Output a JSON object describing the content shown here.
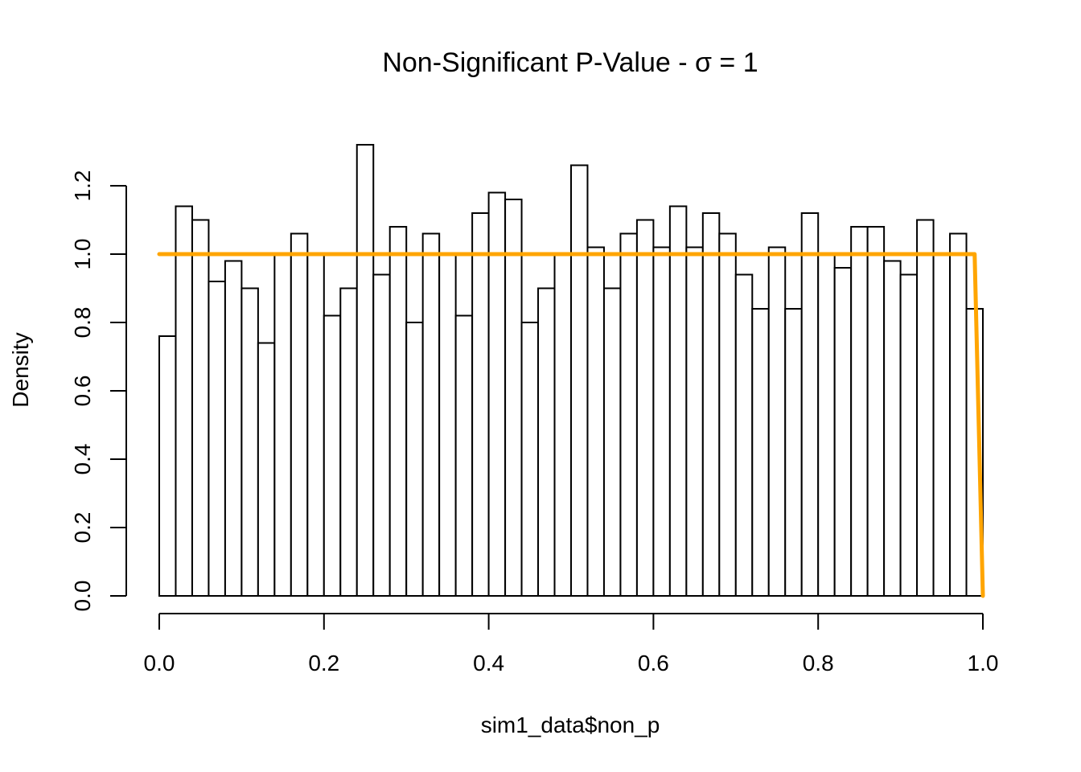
{
  "chart_data": {
    "type": "bar",
    "title": "Non-Significant P-Value - σ = 1",
    "xlabel": "sim1_data$non_p",
    "ylabel": "Density",
    "xlim": [
      0,
      1
    ],
    "ylim": [
      0,
      1.32
    ],
    "bin_width": 0.02,
    "x_ticks": [
      "0.0",
      "0.2",
      "0.4",
      "0.6",
      "0.8",
      "1.0"
    ],
    "x_tick_values": [
      0,
      0.2,
      0.4,
      0.6,
      0.8,
      1.0
    ],
    "y_ticks": [
      "0.0",
      "0.2",
      "0.4",
      "0.6",
      "0.8",
      "1.0",
      "1.2"
    ],
    "y_tick_values": [
      0,
      0.2,
      0.4,
      0.6,
      0.8,
      1.0,
      1.2
    ],
    "bin_starts": [
      0.0,
      0.02,
      0.04,
      0.06,
      0.08,
      0.1,
      0.12,
      0.14,
      0.16,
      0.18,
      0.2,
      0.22,
      0.24,
      0.26,
      0.28,
      0.3,
      0.32,
      0.34,
      0.36,
      0.38,
      0.4,
      0.42,
      0.44,
      0.46,
      0.48,
      0.5,
      0.52,
      0.54,
      0.56,
      0.58,
      0.6,
      0.62,
      0.64,
      0.66,
      0.68,
      0.7,
      0.72,
      0.74,
      0.76,
      0.78,
      0.8,
      0.82,
      0.84,
      0.86,
      0.88,
      0.9,
      0.92,
      0.94,
      0.96,
      0.98
    ],
    "values": [
      0.76,
      1.14,
      1.1,
      0.92,
      0.98,
      0.9,
      0.74,
      1.0,
      1.06,
      1.0,
      0.82,
      0.9,
      1.32,
      0.94,
      1.08,
      0.8,
      1.06,
      1.0,
      0.82,
      1.12,
      1.18,
      1.16,
      0.8,
      0.9,
      1.0,
      1.26,
      1.02,
      0.9,
      1.06,
      1.1,
      1.02,
      1.14,
      1.02,
      1.12,
      1.06,
      0.94,
      0.84,
      1.02,
      0.84,
      1.12,
      1.0,
      0.96,
      1.08,
      1.08,
      0.98,
      0.94,
      1.1,
      1.0,
      1.06,
      0.84
    ],
    "density_line": {
      "color": "#FFA500",
      "x": [
        0.0,
        0.99,
        0.992,
        0.994,
        0.996,
        0.998,
        1.0
      ],
      "y": [
        1.0,
        1.0,
        0.8,
        0.6,
        0.4,
        0.2,
        0.0
      ]
    },
    "grid": false,
    "legend": "none"
  }
}
